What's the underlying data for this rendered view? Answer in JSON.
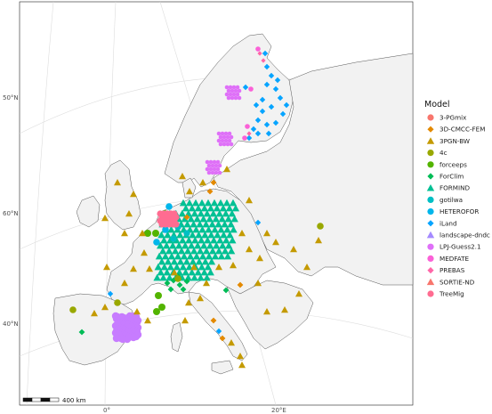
{
  "map": {
    "lat_labels": [
      "50°N",
      "40°N",
      "60°N"
    ],
    "lon_labels": [
      "0°",
      "20°E"
    ],
    "scale_label": "400 km"
  },
  "legend": {
    "title": "Model",
    "items": [
      {
        "label": "3-PGmix",
        "shape": "circle",
        "color": "#F8766D"
      },
      {
        "label": "3D-CMCC-FEM",
        "shape": "diamond",
        "color": "#E38900"
      },
      {
        "label": "3PGN-BW",
        "shape": "triangle",
        "color": "#C49A00"
      },
      {
        "label": "4c",
        "shape": "circle",
        "color": "#99A800"
      },
      {
        "label": "forceeps",
        "shape": "circle",
        "color": "#53B400"
      },
      {
        "label": "ForClim",
        "shape": "diamond",
        "color": "#00BC56"
      },
      {
        "label": "FORMIND",
        "shape": "triangle",
        "color": "#00C094"
      },
      {
        "label": "gotilwa",
        "shape": "circle",
        "color": "#00BFC4"
      },
      {
        "label": "HETEROFOR",
        "shape": "circle",
        "color": "#00B6EB"
      },
      {
        "label": "iLand",
        "shape": "diamond",
        "color": "#06A4FF"
      },
      {
        "label": "landscape-dndc",
        "shape": "triangle",
        "color": "#A58AFF"
      },
      {
        "label": "LPJ-Guess2.1",
        "shape": "circle",
        "color": "#DF70F8"
      },
      {
        "label": "MEDFATE",
        "shape": "circle",
        "color": "#FB61D7"
      },
      {
        "label": "PREBAS",
        "shape": "diamond",
        "color": "#FF66A8"
      },
      {
        "label": "SORTIE-ND",
        "shape": "triangle",
        "color": "#F8766D"
      },
      {
        "label": "TreeMig",
        "shape": "circle",
        "color": "#FF6C91"
      }
    ]
  },
  "colors": {
    "land": "#f2f2f2",
    "coast": "#555555",
    "graticule": "#d9d9d9",
    "sea": "#ffffff"
  }
}
